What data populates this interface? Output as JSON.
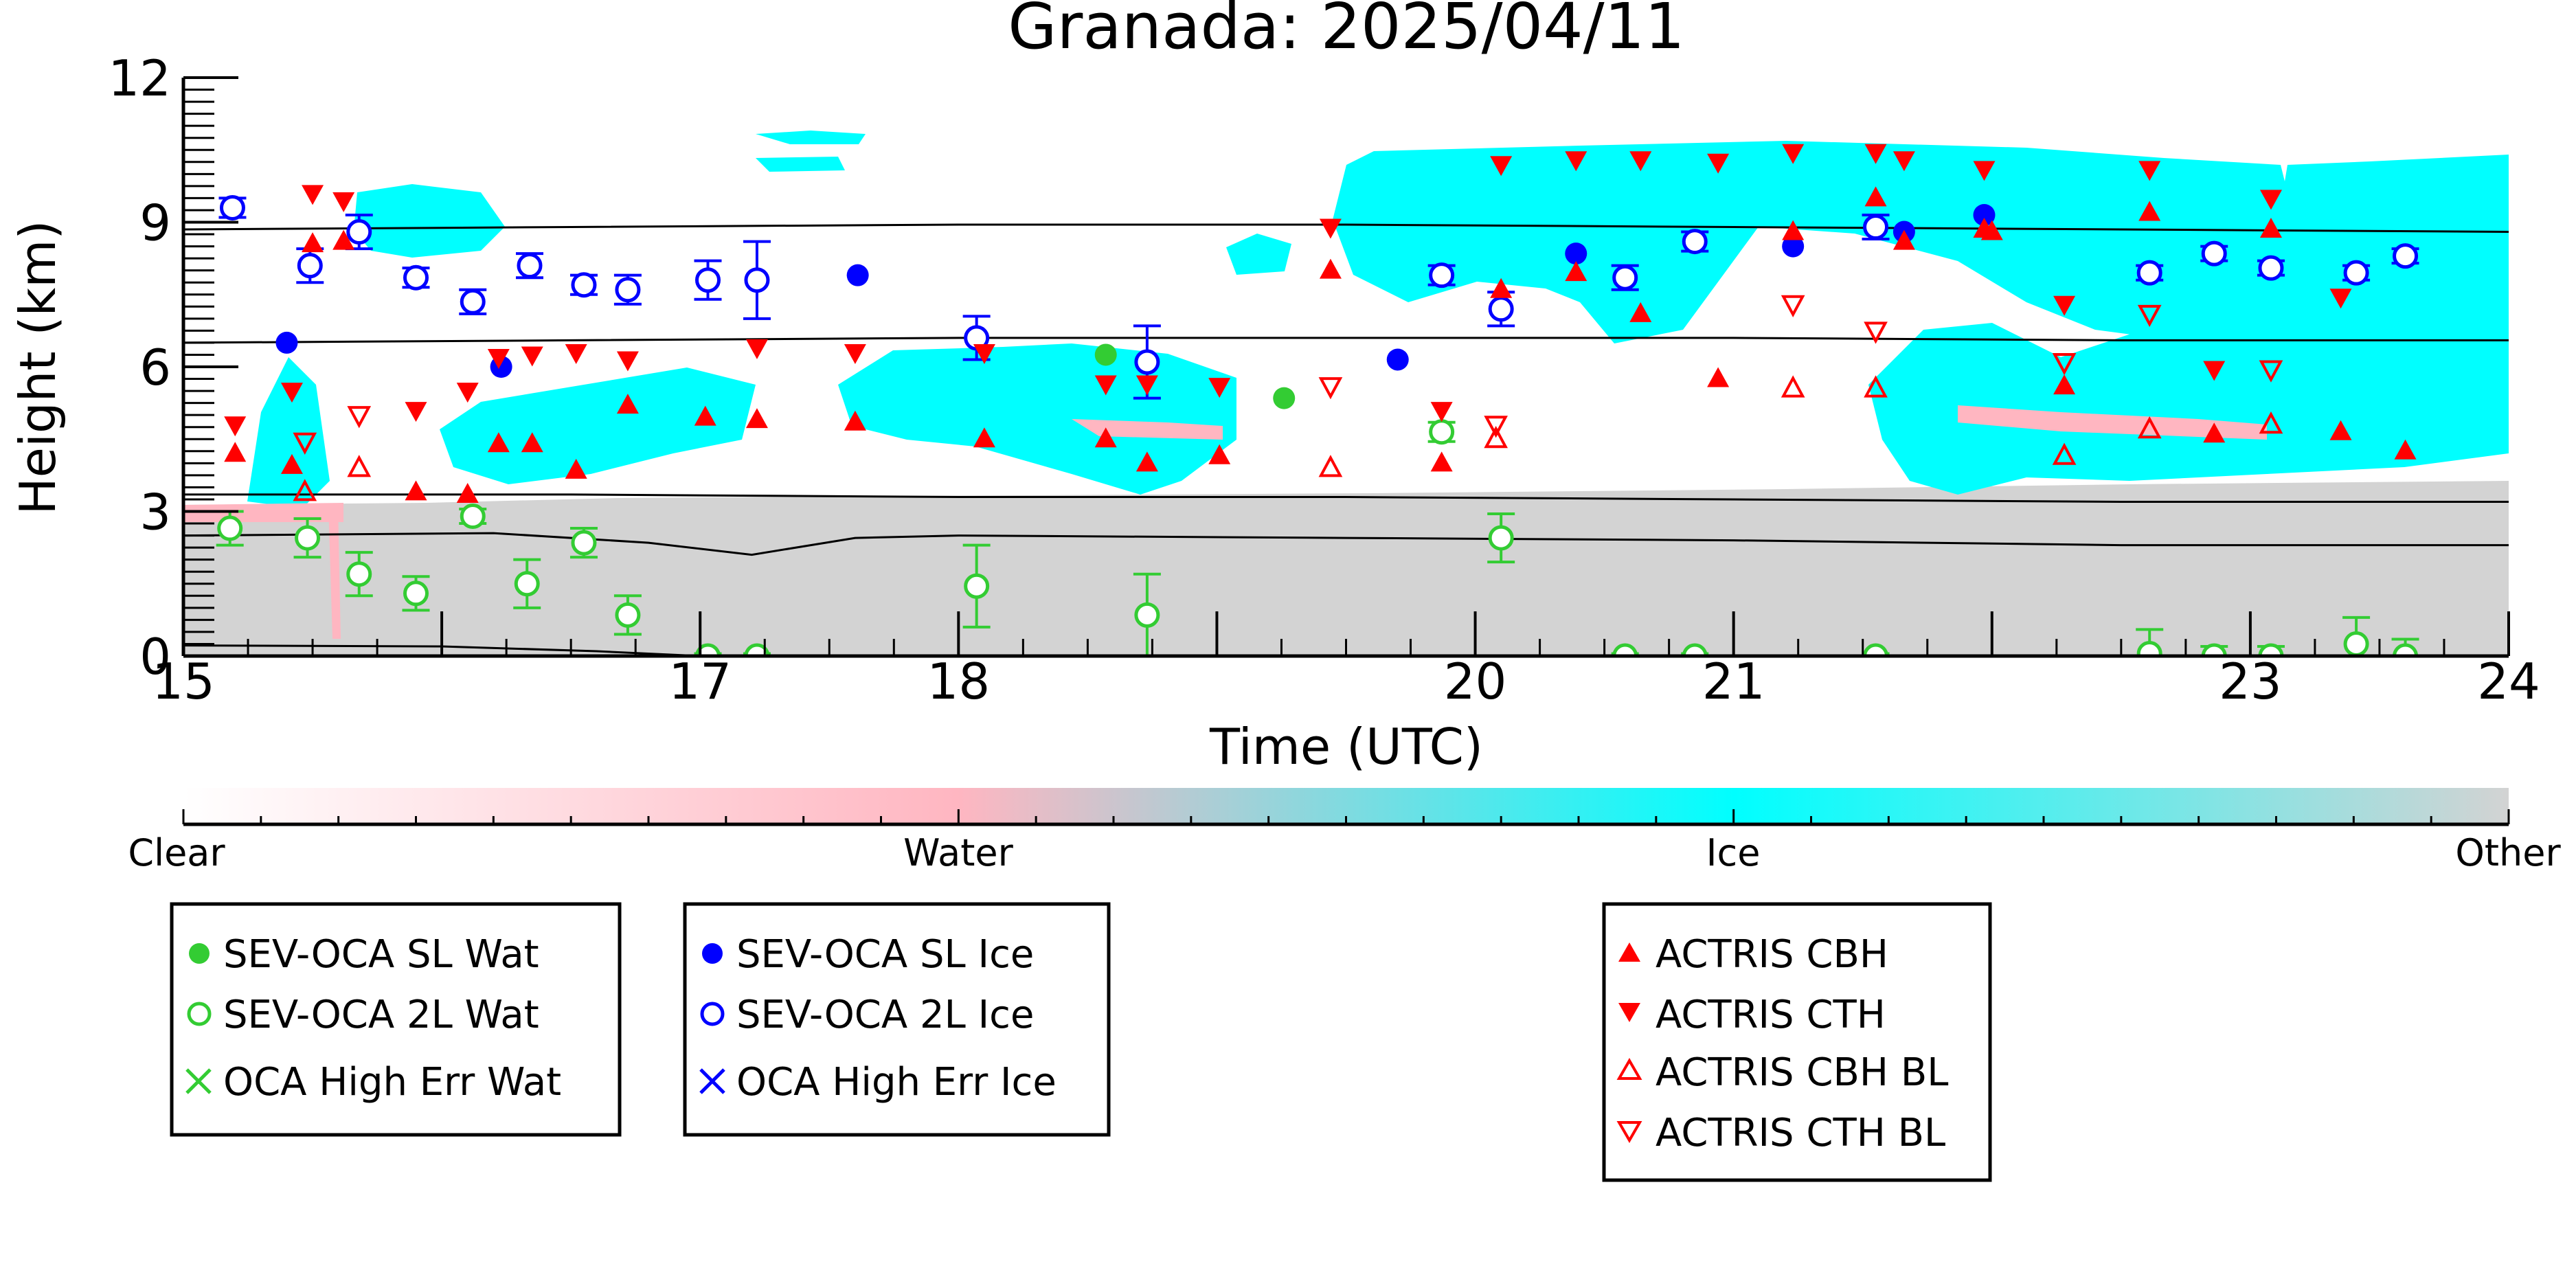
{
  "chart_data": {
    "type": "scatter",
    "title": "Granada: 2025/04/11",
    "xlabel": "Time (UTC)",
    "ylabel": "Height (km)",
    "xlim": [
      15,
      24
    ],
    "ylim": [
      0,
      12
    ],
    "x_ticks": [
      15,
      17,
      18,
      20,
      21,
      23,
      24
    ],
    "x_tick_labels": [
      "15",
      "17",
      "18",
      "20",
      "21",
      "23",
      "24"
    ],
    "y_ticks": [
      0,
      3,
      6,
      9,
      12
    ],
    "y_tick_labels": [
      "0",
      "3",
      "6",
      "9",
      "12"
    ],
    "grid": false,
    "background": {
      "description_type": "cloud phase mask",
      "colorbar_labels": [
        "Clear",
        "Water",
        "Ice",
        "Other"
      ],
      "colorbar_colors": [
        "#ffffff",
        "#ffb6c1",
        "#00ffff",
        "#d3d3d3"
      ]
    },
    "reference_lines": [
      {
        "points": [
          [
            15,
            8.85
          ],
          [
            16.5,
            8.9
          ],
          [
            18,
            8.95
          ],
          [
            19.5,
            8.95
          ],
          [
            21,
            8.9
          ],
          [
            22.5,
            8.85
          ],
          [
            24,
            8.8
          ]
        ]
      },
      {
        "points": [
          [
            15,
            6.5
          ],
          [
            16.5,
            6.55
          ],
          [
            18,
            6.6
          ],
          [
            19.5,
            6.6
          ],
          [
            21,
            6.6
          ],
          [
            22.5,
            6.55
          ],
          [
            24,
            6.55
          ]
        ]
      },
      {
        "points": [
          [
            15,
            3.35
          ],
          [
            16.5,
            3.35
          ],
          [
            18,
            3.3
          ],
          [
            19.5,
            3.3
          ],
          [
            21,
            3.25
          ],
          [
            22.5,
            3.2
          ],
          [
            24,
            3.2
          ]
        ]
      },
      {
        "points": [
          [
            15,
            2.5
          ],
          [
            16.2,
            2.55
          ],
          [
            16.8,
            2.35
          ],
          [
            17.2,
            2.1
          ],
          [
            17.6,
            2.45
          ],
          [
            18.0,
            2.5
          ],
          [
            19.5,
            2.45
          ],
          [
            21,
            2.4
          ],
          [
            22.5,
            2.3
          ],
          [
            24,
            2.3
          ]
        ]
      },
      {
        "points": [
          [
            15,
            0.22
          ],
          [
            16.0,
            0.2
          ],
          [
            16.6,
            0.1
          ],
          [
            17.0,
            0.0
          ]
        ]
      }
    ],
    "series": [
      {
        "name": "SEV-OCA SL Wat",
        "marker": "filled-circle",
        "color": "#33cc33",
        "points": [
          [
            18.57,
            6.25
          ],
          [
            19.26,
            5.35
          ]
        ]
      },
      {
        "name": "SEV-OCA 2L Wat",
        "marker": "open-circle",
        "color": "#33cc33",
        "points": [
          [
            15.18,
            2.65,
            0.35
          ],
          [
            15.48,
            2.45,
            0.4
          ],
          [
            15.68,
            1.7,
            0.45
          ],
          [
            15.9,
            1.3,
            0.35
          ],
          [
            16.12,
            2.9,
            0.15
          ],
          [
            16.33,
            1.5,
            0.5
          ],
          [
            16.55,
            2.35,
            0.3
          ],
          [
            16.72,
            0.85,
            0.4
          ],
          [
            17.03,
            0.0,
            0.05
          ],
          [
            17.22,
            0.0,
            0.05
          ],
          [
            18.07,
            1.45,
            0.85
          ],
          [
            18.73,
            0.85,
            0.85
          ],
          [
            19.87,
            4.65,
            0.2
          ],
          [
            20.1,
            2.45,
            0.5
          ],
          [
            20.58,
            0.0,
            0.05
          ],
          [
            20.85,
            0.0,
            0.05
          ],
          [
            21.55,
            0.0,
            0.05
          ],
          [
            22.61,
            0.05,
            0.5
          ],
          [
            22.86,
            0.0,
            0.2
          ],
          [
            23.08,
            0.0,
            0.2
          ],
          [
            23.41,
            0.25,
            0.55
          ],
          [
            23.6,
            0.0,
            0.35
          ]
        ]
      },
      {
        "name": "OCA High Err Wat",
        "marker": "x",
        "color": "#33cc33",
        "points": []
      },
      {
        "name": "SEV-OCA SL Ice",
        "marker": "filled-circle",
        "color": "#0000ff",
        "points": [
          [
            15.4,
            6.5
          ],
          [
            16.23,
            6.0
          ],
          [
            17.61,
            7.9
          ],
          [
            19.7,
            6.15
          ],
          [
            20.39,
            8.35
          ],
          [
            21.23,
            8.5
          ],
          [
            21.66,
            8.8
          ],
          [
            21.97,
            9.15
          ]
        ]
      },
      {
        "name": "SEV-OCA 2L Ice",
        "marker": "open-circle",
        "color": "#0000ff",
        "points": [
          [
            15.19,
            9.3,
            0.2
          ],
          [
            15.49,
            8.1,
            0.35
          ],
          [
            15.68,
            8.8,
            0.35
          ],
          [
            15.9,
            7.85,
            0.2
          ],
          [
            16.12,
            7.35,
            0.25
          ],
          [
            16.34,
            8.1,
            0.25
          ],
          [
            16.55,
            7.7,
            0.2
          ],
          [
            16.72,
            7.6,
            0.3
          ],
          [
            17.03,
            7.8,
            0.4
          ],
          [
            17.22,
            7.8,
            0.8
          ],
          [
            18.07,
            6.6,
            0.45
          ],
          [
            18.73,
            6.1,
            0.75
          ],
          [
            19.87,
            7.9,
            0.2
          ],
          [
            20.1,
            7.2,
            0.35
          ],
          [
            20.58,
            7.85,
            0.25
          ],
          [
            20.85,
            8.6,
            0.2
          ],
          [
            21.55,
            8.9,
            0.25
          ],
          [
            22.61,
            7.95,
            0.15
          ],
          [
            22.86,
            8.35,
            0.15
          ],
          [
            23.08,
            8.05,
            0.15
          ],
          [
            23.41,
            7.95,
            0.15
          ],
          [
            23.6,
            8.3,
            0.15
          ]
        ]
      },
      {
        "name": "OCA High Err Ice",
        "marker": "x",
        "color": "#0000ff",
        "points": []
      },
      {
        "name": "ACTRIS CBH",
        "marker": "filled-triangle-up",
        "color": "#ff0000",
        "points": [
          [
            15.2,
            4.2
          ],
          [
            15.42,
            3.95
          ],
          [
            15.5,
            8.55
          ],
          [
            15.62,
            8.6
          ],
          [
            15.9,
            3.4
          ],
          [
            16.1,
            3.35
          ],
          [
            16.22,
            4.4
          ],
          [
            16.35,
            4.4
          ],
          [
            16.52,
            3.85
          ],
          [
            16.72,
            5.2
          ],
          [
            17.02,
            4.95
          ],
          [
            17.22,
            4.9
          ],
          [
            17.6,
            4.85
          ],
          [
            18.1,
            4.5
          ],
          [
            18.57,
            4.5
          ],
          [
            18.73,
            4.0
          ],
          [
            19.01,
            4.15
          ],
          [
            19.44,
            8.0
          ],
          [
            19.87,
            4.0
          ],
          [
            20.1,
            7.6
          ],
          [
            20.39,
            7.95
          ],
          [
            20.64,
            7.1
          ],
          [
            20.94,
            5.75
          ],
          [
            21.23,
            8.8
          ],
          [
            21.55,
            9.5
          ],
          [
            21.66,
            8.6
          ],
          [
            21.97,
            8.85
          ],
          [
            22.0,
            8.8
          ],
          [
            22.28,
            5.6
          ],
          [
            22.61,
            9.2
          ],
          [
            22.86,
            4.6
          ],
          [
            23.08,
            8.85
          ],
          [
            23.35,
            4.65
          ],
          [
            23.6,
            4.25
          ]
        ]
      },
      {
        "name": "ACTRIS CTH",
        "marker": "filled-triangle-down",
        "color": "#ff0000",
        "points": [
          [
            15.2,
            4.8
          ],
          [
            15.42,
            5.5
          ],
          [
            15.5,
            9.6
          ],
          [
            15.62,
            9.45
          ],
          [
            15.9,
            5.1
          ],
          [
            16.1,
            5.5
          ],
          [
            16.22,
            6.2
          ],
          [
            16.35,
            6.25
          ],
          [
            16.52,
            6.3
          ],
          [
            16.72,
            6.15
          ],
          [
            17.22,
            6.4
          ],
          [
            17.6,
            6.3
          ],
          [
            18.1,
            6.3
          ],
          [
            18.57,
            5.65
          ],
          [
            18.73,
            5.65
          ],
          [
            19.01,
            5.6
          ],
          [
            19.44,
            8.9
          ],
          [
            19.87,
            5.1
          ],
          [
            20.1,
            10.2
          ],
          [
            20.39,
            10.3
          ],
          [
            20.64,
            10.3
          ],
          [
            20.94,
            10.25
          ],
          [
            21.23,
            10.45
          ],
          [
            21.55,
            10.45
          ],
          [
            21.66,
            10.3
          ],
          [
            21.97,
            10.1
          ],
          [
            22.28,
            7.3
          ],
          [
            22.61,
            10.1
          ],
          [
            22.86,
            5.95
          ],
          [
            23.08,
            9.5
          ],
          [
            23.35,
            7.45
          ]
        ]
      },
      {
        "name": "ACTRIS CBH BL",
        "marker": "open-triangle-up",
        "color": "#ff0000",
        "points": [
          [
            15.47,
            3.4
          ],
          [
            15.68,
            3.9
          ],
          [
            19.44,
            3.9
          ],
          [
            20.08,
            4.5
          ],
          [
            21.23,
            5.55
          ],
          [
            21.55,
            5.55
          ],
          [
            22.28,
            4.15
          ],
          [
            22.61,
            4.7
          ],
          [
            23.08,
            4.8
          ]
        ]
      },
      {
        "name": "ACTRIS CTH BL",
        "marker": "open-triangle-down",
        "color": "#ff0000",
        "points": [
          [
            15.47,
            4.45
          ],
          [
            15.68,
            5.0
          ],
          [
            19.44,
            5.6
          ],
          [
            20.08,
            4.8
          ],
          [
            21.23,
            7.3
          ],
          [
            21.55,
            6.75
          ],
          [
            22.28,
            6.1
          ],
          [
            22.61,
            7.1
          ],
          [
            23.08,
            5.95
          ]
        ]
      }
    ],
    "legends": [
      {
        "items": [
          "SEV-OCA SL Wat",
          "SEV-OCA 2L Wat",
          "OCA High Err Wat"
        ]
      },
      {
        "items": [
          "SEV-OCA SL Ice",
          "SEV-OCA 2L Ice",
          "OCA High Err Ice"
        ]
      },
      {
        "items": [
          "ACTRIS CBH",
          "ACTRIS CTH",
          "ACTRIS CBH BL",
          "ACTRIS CTH BL"
        ]
      }
    ]
  }
}
